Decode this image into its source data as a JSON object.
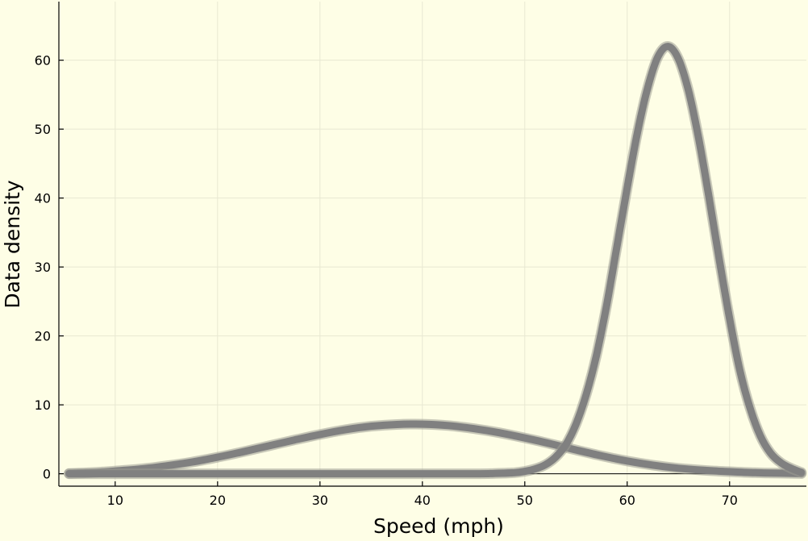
{
  "chart_data": {
    "type": "line",
    "title": "",
    "xlabel": "Speed (mph)",
    "ylabel": "Data density",
    "xlim": [
      4.5,
      77.5
    ],
    "ylim": [
      -1.8,
      68.5
    ],
    "xticks": [
      10,
      20,
      30,
      40,
      50,
      60,
      70
    ],
    "yticks": [
      0,
      10,
      20,
      30,
      40,
      50,
      60
    ],
    "grid": true,
    "legend": "none",
    "background_color": "#fefee6",
    "line_color": "#808080",
    "series": [
      {
        "x": [
          5.5,
          7.5,
          10,
          12.5,
          15,
          17.5,
          20,
          22.5,
          25,
          27.5,
          30,
          32.5,
          35,
          37.5,
          40,
          42.5,
          45,
          47.5,
          50,
          52.5,
          55,
          57.5,
          60,
          62.5,
          65,
          67.5,
          70,
          72.5,
          75,
          77
        ],
        "y": [
          0.05,
          0.15,
          0.4,
          0.7,
          1.15,
          1.7,
          2.4,
          3.2,
          4.05,
          4.9,
          5.7,
          6.4,
          6.9,
          7.15,
          7.2,
          7.0,
          6.55,
          5.95,
          5.2,
          4.35,
          3.45,
          2.6,
          1.85,
          1.25,
          0.8,
          0.5,
          0.3,
          0.15,
          0.08,
          0.03
        ]
      },
      {
        "x": [
          5.5,
          20,
          35,
          45,
          47,
          49,
          50,
          51,
          52,
          53,
          54,
          55,
          56,
          57,
          58,
          59,
          60,
          61,
          62,
          63,
          64,
          65,
          66,
          67,
          68,
          69,
          70,
          71,
          72,
          73,
          74,
          75,
          76,
          77
        ],
        "y": [
          0,
          0,
          0,
          0,
          0.05,
          0.15,
          0.35,
          0.7,
          1.3,
          2.4,
          4.2,
          7.2,
          11.5,
          17.2,
          24.5,
          33,
          41.5,
          49.5,
          56,
          60.5,
          62,
          60.2,
          55.5,
          48.5,
          40,
          31,
          22.5,
          15,
          9.5,
          5.5,
          3,
          1.6,
          0.8,
          0.2
        ]
      }
    ]
  }
}
